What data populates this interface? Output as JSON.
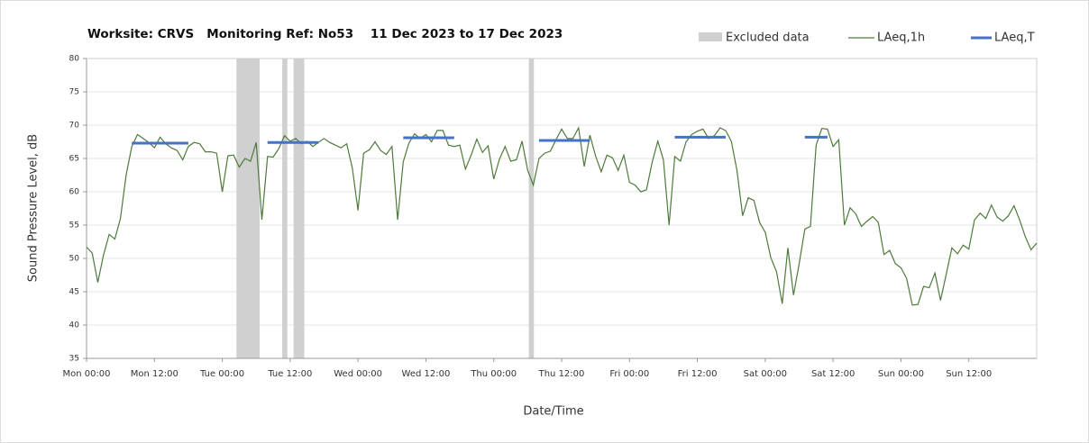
{
  "chart_data": {
    "type": "line",
    "title": "Worksite: CRVS   Monitoring Ref: No53    11 Dec 2023 to 17 Dec 2023",
    "x_label": "Date/Time",
    "y_label": "Sound Pressure Level, dB",
    "xlim": [
      0,
      168
    ],
    "ylim": [
      35,
      80
    ],
    "xticks": [
      {
        "value": 0,
        "label": "Mon 00:00"
      },
      {
        "value": 12,
        "label": "Mon 12:00"
      },
      {
        "value": 24,
        "label": "Tue 00:00"
      },
      {
        "value": 36,
        "label": "Tue 12:00"
      },
      {
        "value": 48,
        "label": "Wed 00:00"
      },
      {
        "value": 60,
        "label": "Wed 12:00"
      },
      {
        "value": 72,
        "label": "Thu 00:00"
      },
      {
        "value": 84,
        "label": "Thu 12:00"
      },
      {
        "value": 96,
        "label": "Fri 00:00"
      },
      {
        "value": 108,
        "label": "Fri 12:00"
      },
      {
        "value": 120,
        "label": "Sat 00:00"
      },
      {
        "value": 132,
        "label": "Sat 12:00"
      },
      {
        "value": 144,
        "label": "Sun 00:00"
      },
      {
        "value": 156,
        "label": "Sun 12:00"
      }
    ],
    "yticks": [
      35,
      40,
      45,
      50,
      55,
      60,
      65,
      70,
      75,
      80
    ],
    "grid": true,
    "excluded": {
      "name": "Excluded data",
      "color": "#d0d0d0",
      "ranges": [
        [
          26.5,
          30.6
        ],
        [
          34.6,
          35.5
        ],
        [
          36.6,
          38.5
        ],
        [
          78.2,
          79.1
        ]
      ]
    },
    "x": [
      0,
      1,
      2,
      3,
      4,
      5,
      6,
      7,
      8,
      9,
      10,
      11,
      12,
      13,
      14,
      15,
      16,
      17,
      18,
      19,
      20,
      21,
      22,
      23,
      24,
      25,
      26,
      27,
      28,
      29,
      30,
      31,
      32,
      33,
      34,
      35,
      36,
      37,
      38,
      39,
      40,
      41,
      42,
      43,
      44,
      45,
      46,
      47,
      48,
      49,
      50,
      51,
      52,
      53,
      54,
      55,
      56,
      57,
      58,
      59,
      60,
      61,
      62,
      63,
      64,
      65,
      66,
      67,
      68,
      69,
      70,
      71,
      72,
      73,
      74,
      75,
      76,
      77,
      78,
      79,
      80,
      81,
      82,
      83,
      84,
      85,
      86,
      87,
      88,
      89,
      90,
      91,
      92,
      93,
      94,
      95,
      96,
      97,
      98,
      99,
      100,
      101,
      102,
      103,
      104,
      105,
      106,
      107,
      108,
      109,
      110,
      111,
      112,
      113,
      114,
      115,
      116,
      117,
      118,
      119,
      120,
      121,
      122,
      123,
      124,
      125,
      126,
      127,
      128,
      129,
      130,
      131,
      132,
      133,
      134,
      135,
      136,
      137,
      138,
      139,
      140,
      141,
      142,
      143,
      144,
      145,
      146,
      147,
      148,
      149,
      150,
      151,
      152,
      153,
      154,
      155,
      156,
      157,
      158,
      159,
      160,
      161,
      162,
      163,
      164,
      165,
      166,
      167,
      168
    ],
    "series": [
      {
        "name": "LAeq,1h",
        "color": "#4e7a3a",
        "values": [
          51.7,
          50.8,
          46.4,
          50.5,
          53.6,
          52.9,
          56,
          62.5,
          66.8,
          68.6,
          68,
          67.4,
          66.6,
          68.2,
          67.2,
          66.6,
          66.2,
          64.8,
          66.8,
          67.4,
          67.2,
          66,
          66,
          65.8,
          60,
          65.4,
          65.5,
          63.7,
          65,
          64.6,
          67.4,
          55.8,
          65.3,
          65.2,
          66.5,
          68.4,
          67.6,
          68,
          67.2,
          67.6,
          66.8,
          67.4,
          68,
          67.4,
          67,
          66.6,
          67.2,
          63.5,
          57.2,
          65.8,
          66.3,
          67.5,
          66.2,
          65.6,
          66.8,
          55.8,
          64.5,
          67.3,
          68.7,
          68,
          68.6,
          67.5,
          69.2,
          69.2,
          67,
          66.8,
          67,
          63.4,
          65.5,
          67.9,
          65.9,
          66.9,
          61.9,
          64.9,
          66.8,
          64.6,
          64.8,
          67.6,
          63.2,
          61,
          65,
          65.8,
          66.1,
          67.8,
          69.4,
          68,
          68,
          69.6,
          63.8,
          68.5,
          65.4,
          63,
          65.5,
          65.1,
          63.2,
          65.5,
          61.4,
          61,
          60,
          60.3,
          64.4,
          67.6,
          64.8,
          55,
          65.3,
          64.6,
          67.5,
          68.6,
          69.1,
          69.4,
          68,
          68.4,
          69.6,
          69.2,
          67.6,
          63.2,
          56.4,
          59.1,
          58.7,
          55.4,
          53.9,
          50.1,
          48,
          43.2,
          51.6,
          44.5,
          49.2,
          54.4,
          54.8,
          67,
          69.5,
          69.4,
          66.8,
          67.8,
          55,
          57.6,
          56.7,
          54.8,
          55.6,
          56.3,
          55.4,
          50.6,
          51.2,
          49.2,
          48.6,
          47,
          43,
          43.1,
          45.8,
          45.6,
          47.8,
          43.7,
          47.6,
          51.6,
          50.7,
          52,
          51.4,
          55.8,
          56.8,
          56,
          58,
          56.2,
          55.6,
          56.4,
          57.9,
          55.7,
          53.2,
          51.3,
          52.3
        ]
      },
      {
        "name": "LAeq,T",
        "color": "#4472c4",
        "segments": [
          {
            "x": [
              8,
              18
            ],
            "value": 67.3
          },
          {
            "x": [
              32,
              41
            ],
            "value": 67.4
          },
          {
            "x": [
              56,
              65
            ],
            "value": 68.1
          },
          {
            "x": [
              80,
              89
            ],
            "value": 67.7
          },
          {
            "x": [
              104,
              113
            ],
            "value": 68.2
          },
          {
            "x": [
              127,
              131
            ],
            "value": 68.2
          }
        ]
      }
    ]
  }
}
